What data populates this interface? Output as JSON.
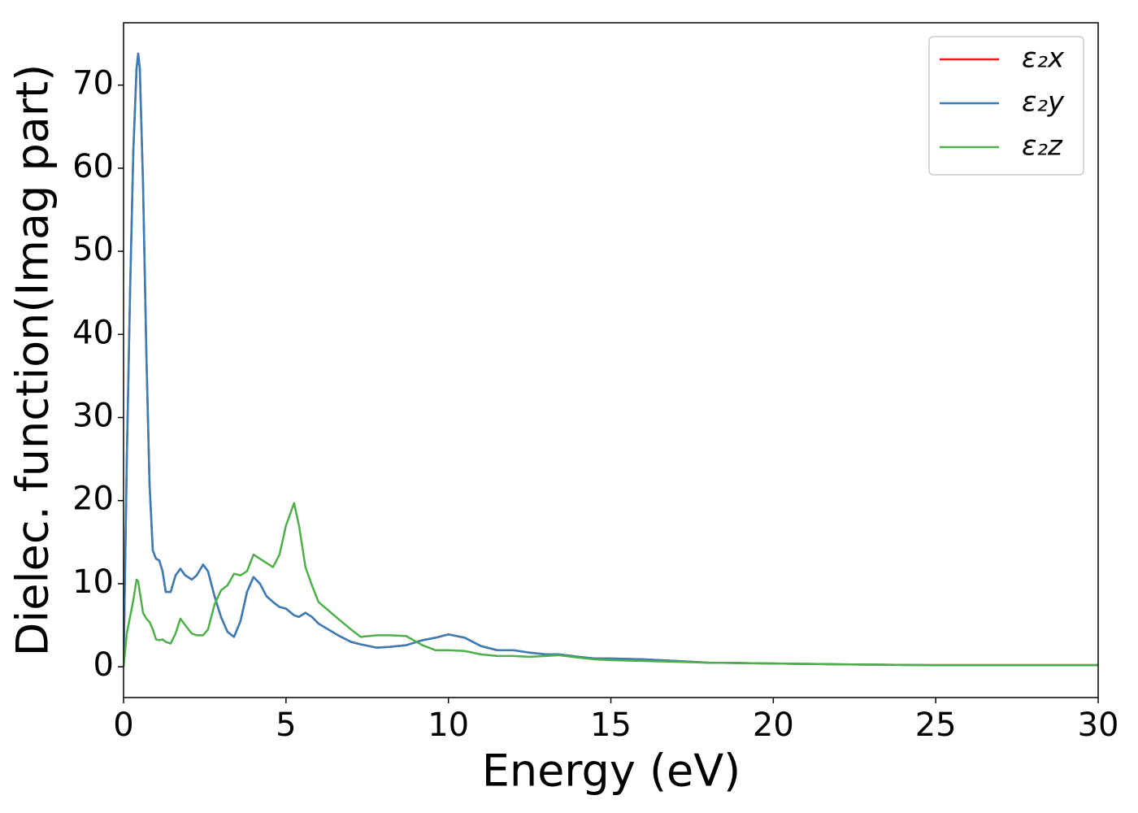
{
  "chart_data": {
    "type": "line",
    "xlabel": "Energy (eV)",
    "ylabel": "Dielec. function(Imag part)",
    "x": [
      0,
      0.1,
      0.2,
      0.3,
      0.4,
      0.45,
      0.5,
      0.6,
      0.7,
      0.8,
      0.9,
      1.0,
      1.1,
      1.2,
      1.3,
      1.45,
      1.6,
      1.75,
      1.9,
      2.1,
      2.25,
      2.45,
      2.6,
      2.8,
      3.0,
      3.2,
      3.4,
      3.6,
      3.8,
      4.0,
      4.2,
      4.4,
      4.6,
      4.8,
      5.0,
      5.25,
      5.4,
      5.6,
      5.8,
      6.0,
      6.3,
      6.6,
      7.0,
      7.3,
      7.8,
      8.2,
      8.7,
      9.2,
      9.6,
      10.0,
      10.5,
      11.0,
      11.5,
      12.0,
      12.5,
      13.0,
      13.4,
      14.0,
      14.5,
      15.0,
      16.0,
      17.0,
      18.0,
      20.0,
      22.0,
      25.0,
      27.0,
      30.0
    ],
    "series": [
      {
        "name": "ε₂x",
        "color": "#e41a1c",
        "values": [
          0,
          25,
          45,
          62,
          72,
          73.8,
          72,
          58,
          38,
          22,
          14,
          13,
          12.8,
          11.5,
          9,
          9,
          11,
          11.8,
          11,
          10.5,
          11,
          12.3,
          11.5,
          8.5,
          6,
          4.2,
          3.6,
          5.5,
          9,
          10.8,
          10,
          8.5,
          7.8,
          7.2,
          7,
          6.2,
          6,
          6.5,
          6,
          5.2,
          4.5,
          3.8,
          3,
          2.7,
          2.3,
          2.4,
          2.6,
          3.2,
          3.5,
          3.9,
          3.5,
          2.5,
          2,
          2,
          1.7,
          1.5,
          1.5,
          1.2,
          1,
          1,
          0.9,
          0.7,
          0.5,
          0.4,
          0.3,
          0.2,
          0.2,
          0.2
        ]
      },
      {
        "name": "ε₂y",
        "color": "#377eb8",
        "values": [
          0,
          25,
          45,
          62,
          72,
          73.8,
          72,
          58,
          38,
          22,
          14,
          13,
          12.8,
          11.5,
          9,
          9,
          11,
          11.8,
          11,
          10.5,
          11,
          12.3,
          11.5,
          8.5,
          6,
          4.2,
          3.6,
          5.5,
          9,
          10.8,
          10,
          8.5,
          7.8,
          7.2,
          7,
          6.2,
          6,
          6.5,
          6,
          5.2,
          4.5,
          3.8,
          3,
          2.7,
          2.3,
          2.4,
          2.6,
          3.2,
          3.5,
          3.9,
          3.5,
          2.5,
          2,
          2,
          1.7,
          1.5,
          1.5,
          1.2,
          1,
          1,
          0.9,
          0.7,
          0.5,
          0.4,
          0.3,
          0.2,
          0.2,
          0.2
        ]
      },
      {
        "name": "ε₂z",
        "color": "#4daf4a",
        "values": [
          0,
          4,
          6,
          8,
          10.5,
          10.3,
          9,
          6.5,
          5.8,
          5.4,
          4.5,
          3.3,
          3.2,
          3.3,
          3,
          2.8,
          4,
          5.8,
          5,
          4,
          3.8,
          3.8,
          4.5,
          7.5,
          9.2,
          9.8,
          11.2,
          11,
          11.5,
          13.5,
          13,
          12.5,
          12,
          13.5,
          17,
          19.7,
          17,
          12,
          9.8,
          7.8,
          6.8,
          5.8,
          4.5,
          3.6,
          3.8,
          3.8,
          3.7,
          2.6,
          2,
          2,
          1.9,
          1.5,
          1.3,
          1.3,
          1.2,
          1.3,
          1.4,
          1.1,
          0.9,
          0.8,
          0.7,
          0.6,
          0.5,
          0.4,
          0.3,
          0.2,
          0.2,
          0.2
        ]
      }
    ],
    "xlim": [
      0,
      30
    ],
    "xticks": [
      0,
      5,
      10,
      15,
      20,
      25,
      30
    ],
    "ylim": [
      -3.7,
      77.5
    ],
    "yticks": [
      0,
      10,
      20,
      30,
      40,
      50,
      60,
      70
    ],
    "grid": false,
    "legend": "upper right"
  }
}
